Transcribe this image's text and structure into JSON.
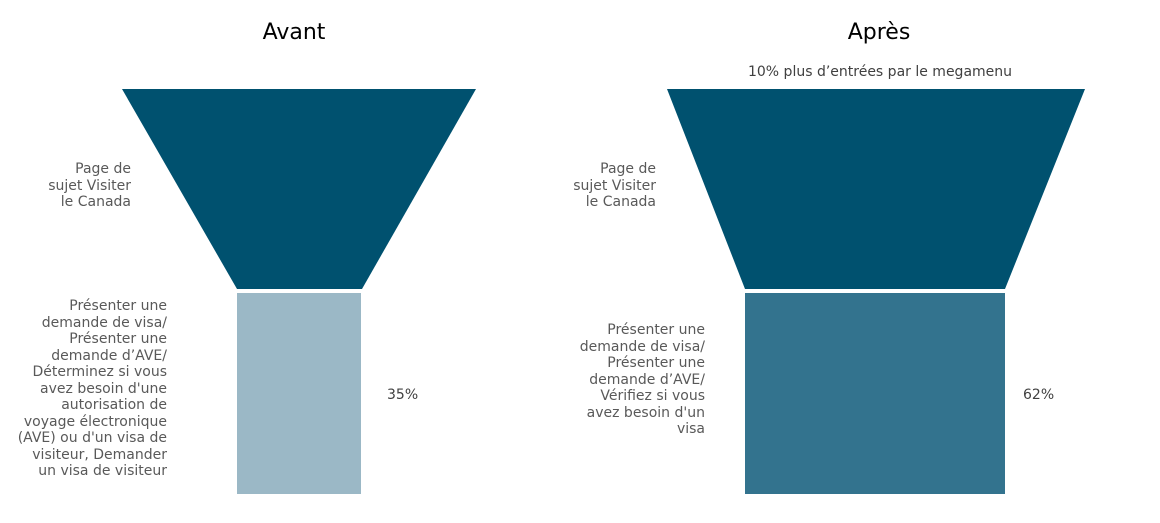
{
  "chart_data": {
    "type": "funnel",
    "panels": [
      {
        "title": "Avant",
        "subtitle": "",
        "stages": [
          {
            "label": "Page de\nsujet Visiter\nle Canada",
            "value": null,
            "value_label": "",
            "color": "#00516f"
          },
          {
            "label": "Présenter une\ndemande de visa/\nPrésenter une\ndemande d’AVE/\nDéterminez si vous\navez besoin d'une\nautorisation de\nvoyage électronique\n(AVE) ou d'un visa de\nvisiteur,  Demander\nun visa de visiteur",
            "value": 35,
            "value_label": "35%",
            "color": "#9bb8c6"
          }
        ]
      },
      {
        "title": "Après",
        "subtitle": "10% plus d’entrées par le megamenu",
        "stages": [
          {
            "label": "Page de\nsujet Visiter\nle Canada",
            "value": null,
            "value_label": "",
            "color": "#00516f"
          },
          {
            "label": "Présenter une\ndemande de visa/\nPrésenter une\ndemande d’AVE/\nVérifiez si vous\navez besoin d'un\nvisa",
            "value": 62,
            "value_label": "62%",
            "color": "#33738e"
          }
        ]
      }
    ]
  }
}
